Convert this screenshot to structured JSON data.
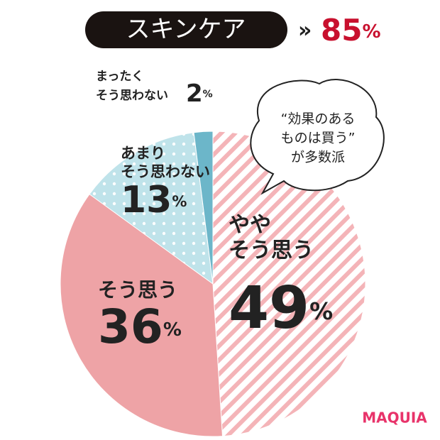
{
  "header": {
    "label": "スキンケア",
    "marker": "»",
    "value": 85,
    "unit": "%"
  },
  "chart_data": {
    "type": "pie",
    "categories": [
      [
        "やや",
        "そう思う"
      ],
      [
        "そう思う"
      ],
      [
        "あまり",
        "そう思わない"
      ],
      [
        "まったく",
        "そう思わない"
      ]
    ],
    "values": [
      49,
      36,
      13,
      2
    ],
    "unit": "%",
    "colors": [
      "#f4b4b8",
      "#eea3a6",
      "#bfe3ea",
      "#6cb6c9"
    ],
    "fills": [
      "stripes",
      "solid",
      "dots",
      "solid"
    ]
  },
  "callout": {
    "lines": [
      "“効果のある",
      "ものは買う”",
      "が多数派"
    ]
  },
  "brand": "MAQUIA"
}
